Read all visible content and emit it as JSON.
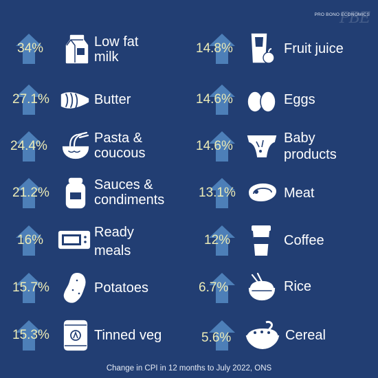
{
  "brand": {
    "watermark": "PBE",
    "text": "PRO BONO ECONOMICS"
  },
  "footer": "Change in CPI in 12 months to July 2022, ONS",
  "colors": {
    "background": "#223e73",
    "arrow": "#4d7fb8",
    "percent": "#ecebb6",
    "label": "#ffffff"
  },
  "left": [
    {
      "pct": "34%",
      "label": [
        "Low fat",
        "milk"
      ],
      "icon": "milk-carton-icon"
    },
    {
      "pct": "27.1%",
      "label": [
        "Butter"
      ],
      "icon": "butter-icon"
    },
    {
      "pct": "24.4%",
      "label": [
        "Pasta &",
        "coucous"
      ],
      "icon": "noodle-bowl-icon"
    },
    {
      "pct": "21.2%",
      "label": [
        "Sauces &",
        "condiments"
      ],
      "icon": "jar-icon"
    },
    {
      "pct": "16%",
      "label": [
        "Ready",
        "meals"
      ],
      "icon": "microwave-icon"
    },
    {
      "pct": "15.7%",
      "label": [
        "Potatoes"
      ],
      "icon": "potato-icon"
    },
    {
      "pct": "15.3%",
      "label": [
        "Tinned veg"
      ],
      "icon": "tin-can-icon"
    }
  ],
  "right": [
    {
      "pct": "14.8%",
      "label": [
        "Fruit juice"
      ],
      "icon": "juice-glass-icon"
    },
    {
      "pct": "14.6%",
      "label": [
        "Eggs"
      ],
      "icon": "eggs-icon"
    },
    {
      "pct": "14.6%",
      "label": [
        "Baby",
        "products"
      ],
      "icon": "nappy-icon"
    },
    {
      "pct": "13.1%",
      "label": [
        "Meat"
      ],
      "icon": "steak-icon"
    },
    {
      "pct": "12%",
      "label": [
        "Coffee"
      ],
      "icon": "coffee-cup-icon"
    },
    {
      "pct": "6.7%",
      "label": [
        "Rice"
      ],
      "icon": "rice-bowl-icon"
    },
    {
      "pct": "5.6%",
      "label": [
        "Cereal"
      ],
      "icon": "cereal-bowl-icon"
    }
  ]
}
